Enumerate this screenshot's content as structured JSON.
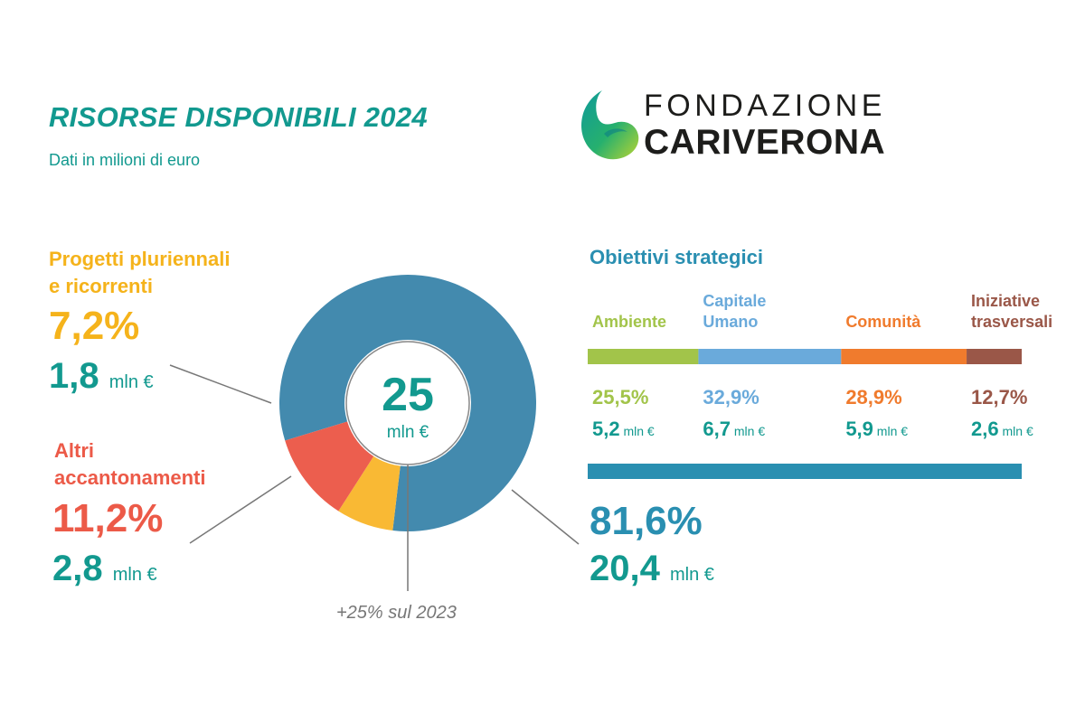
{
  "header": {
    "title": "RISORSE DISPONIBILI 2024",
    "subtitle": "Dati in milioni di euro"
  },
  "logo": {
    "line1": "FONDAZIONE",
    "line2": "CARIVERONA"
  },
  "chart_data": {
    "type": "pie",
    "title": "RISORSE DISPONIBILI 2024",
    "subtitle": "Dati in milioni di euro",
    "total": {
      "value": "25",
      "unit": "mln €",
      "note": "+25% sul 2023"
    },
    "categories": [
      "Obiettivi strategici",
      "Progetti pluriennali e ricorrenti",
      "Altri accantonamenti"
    ],
    "values": [
      81.6,
      7.2,
      11.2
    ],
    "colors": [
      "#438aae",
      "#f9b934",
      "#ec5e4e"
    ],
    "slices": [
      {
        "label_line1": "Obiettivi strategici",
        "label_line2": "",
        "percent": 81.6,
        "percent_text": "81,6%",
        "value_text": "20,4",
        "unit": "mln €"
      },
      {
        "label_line1": "Progetti pluriennali",
        "label_line2": "e ricorrenti",
        "percent": 7.2,
        "percent_text": "7,2%",
        "value_text": "1,8",
        "unit": "mln €"
      },
      {
        "label_line1": "Altri",
        "label_line2": "accantonamenti",
        "percent": 11.2,
        "percent_text": "11,2%",
        "value_text": "2,8",
        "unit": "mln €"
      }
    ],
    "breakdown": {
      "title": "Obiettivi strategici",
      "type": "stacked-bar",
      "categories": [
        "Ambiente",
        "Capitale Umano",
        "Comunità",
        "Iniziative trasversali"
      ],
      "values": [
        25.5,
        32.9,
        28.9,
        12.7
      ],
      "colors": [
        "#a2c44a",
        "#6aaadb",
        "#f07b2d",
        "#9a5748"
      ],
      "items": [
        {
          "label_line1": "",
          "label_line2": "Ambiente",
          "percent_text": "25,5%",
          "value_text": "5,2",
          "unit": "mln €"
        },
        {
          "label_line1": "Capitale",
          "label_line2": "Umano",
          "percent_text": "32,9%",
          "value_text": "6,7",
          "unit": "mln €"
        },
        {
          "label_line1": "",
          "label_line2": "Comunità",
          "percent_text": "28,9%",
          "value_text": "5,9",
          "unit": "mln €"
        },
        {
          "label_line1": "Iniziative",
          "label_line2": "trasversali",
          "percent_text": "12,7%",
          "value_text": "2,6",
          "unit": "mln €"
        }
      ]
    }
  }
}
